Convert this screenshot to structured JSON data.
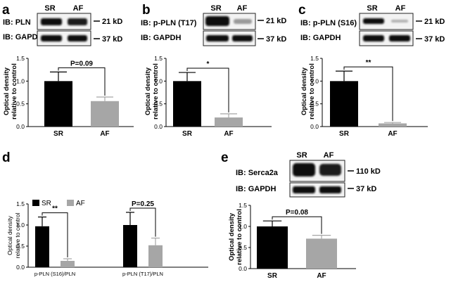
{
  "colors": {
    "sr": "#000000",
    "af": "#a6a6a6"
  },
  "blots": {
    "a": {
      "label": "a",
      "lanes": [
        "SR",
        "AF"
      ],
      "rows": [
        {
          "name": "IB: PLN",
          "kd": "21 kD"
        },
        {
          "name": "IB: GAPDH",
          "kd": "37 kD"
        }
      ]
    },
    "b": {
      "label": "b",
      "lanes": [
        "SR",
        "AF"
      ],
      "rows": [
        {
          "name": "IB: p-PLN (T17)",
          "kd": "21 kD"
        },
        {
          "name": "IB: GAPDH",
          "kd": "37 kD"
        }
      ]
    },
    "c": {
      "label": "c",
      "lanes": [
        "SR",
        "AF"
      ],
      "rows": [
        {
          "name": "IB: p-PLN (S16)",
          "kd": "21 kD"
        },
        {
          "name": "IB: GAPDH",
          "kd": "37 kD"
        }
      ]
    },
    "d": {
      "label": "d"
    },
    "e": {
      "label": "e",
      "lanes": [
        "SR",
        "AF"
      ],
      "rows": [
        {
          "name": "IB: Serca2a",
          "kd": "110 kD"
        },
        {
          "name": "IB: GAPDH",
          "kd": "37 kD"
        }
      ]
    }
  },
  "chart_data": [
    {
      "panel": "a",
      "type": "bar",
      "categories": [
        "SR",
        "AF"
      ],
      "values": [
        1.0,
        0.56
      ],
      "errors": [
        0.2,
        0.09
      ],
      "ylabel": "Optical density relative to control",
      "ylim": [
        0,
        1.5
      ],
      "yticks": [
        "0.0",
        "0.5",
        "1.0",
        "1.5"
      ],
      "annotation": "P=0.09"
    },
    {
      "panel": "b",
      "type": "bar",
      "categories": [
        "SR",
        "AF"
      ],
      "values": [
        1.0,
        0.2
      ],
      "errors": [
        0.19,
        0.08
      ],
      "ylabel": "Optical density relative to control",
      "ylim": [
        0,
        1.5
      ],
      "yticks": [
        "0.0",
        "0.5",
        "1.0",
        "1.5"
      ],
      "annotation": "*"
    },
    {
      "panel": "c",
      "type": "bar",
      "categories": [
        "SR",
        "AF"
      ],
      "values": [
        1.0,
        0.07
      ],
      "errors": [
        0.22,
        0.02
      ],
      "ylabel": "Optical density relative to control",
      "ylim": [
        0,
        1.5
      ],
      "yticks": [
        "0.0",
        "0.5",
        "1.0",
        "1.5"
      ],
      "annotation": "**"
    },
    {
      "panel": "d",
      "type": "bar",
      "categories": [
        "p-PLN (S16)/PLN",
        "p-PLN (T17)/PLN"
      ],
      "series": [
        {
          "name": "SR",
          "values": [
            0.97,
            1.0
          ],
          "errors": [
            0.22,
            0.3
          ]
        },
        {
          "name": "AF",
          "values": [
            0.15,
            0.52
          ],
          "errors": [
            0.05,
            0.17
          ]
        }
      ],
      "ylabel": "Optical density relative to control",
      "ylim": [
        0,
        1.5
      ],
      "yticks": [
        "0.0",
        "0.5",
        "1.0",
        "1.5"
      ],
      "annotations": [
        "**",
        "P=0.25"
      ],
      "legend": "top-left"
    },
    {
      "panel": "e",
      "type": "bar",
      "categories": [
        "SR",
        "AF"
      ],
      "values": [
        1.0,
        0.71
      ],
      "errors": [
        0.13,
        0.08
      ],
      "ylabel": "Optical density relative to control",
      "ylim": [
        0,
        1.5
      ],
      "yticks": [
        "0.0",
        "0.5",
        "1.0",
        "1.5"
      ],
      "annotation": "P=0.08"
    }
  ]
}
